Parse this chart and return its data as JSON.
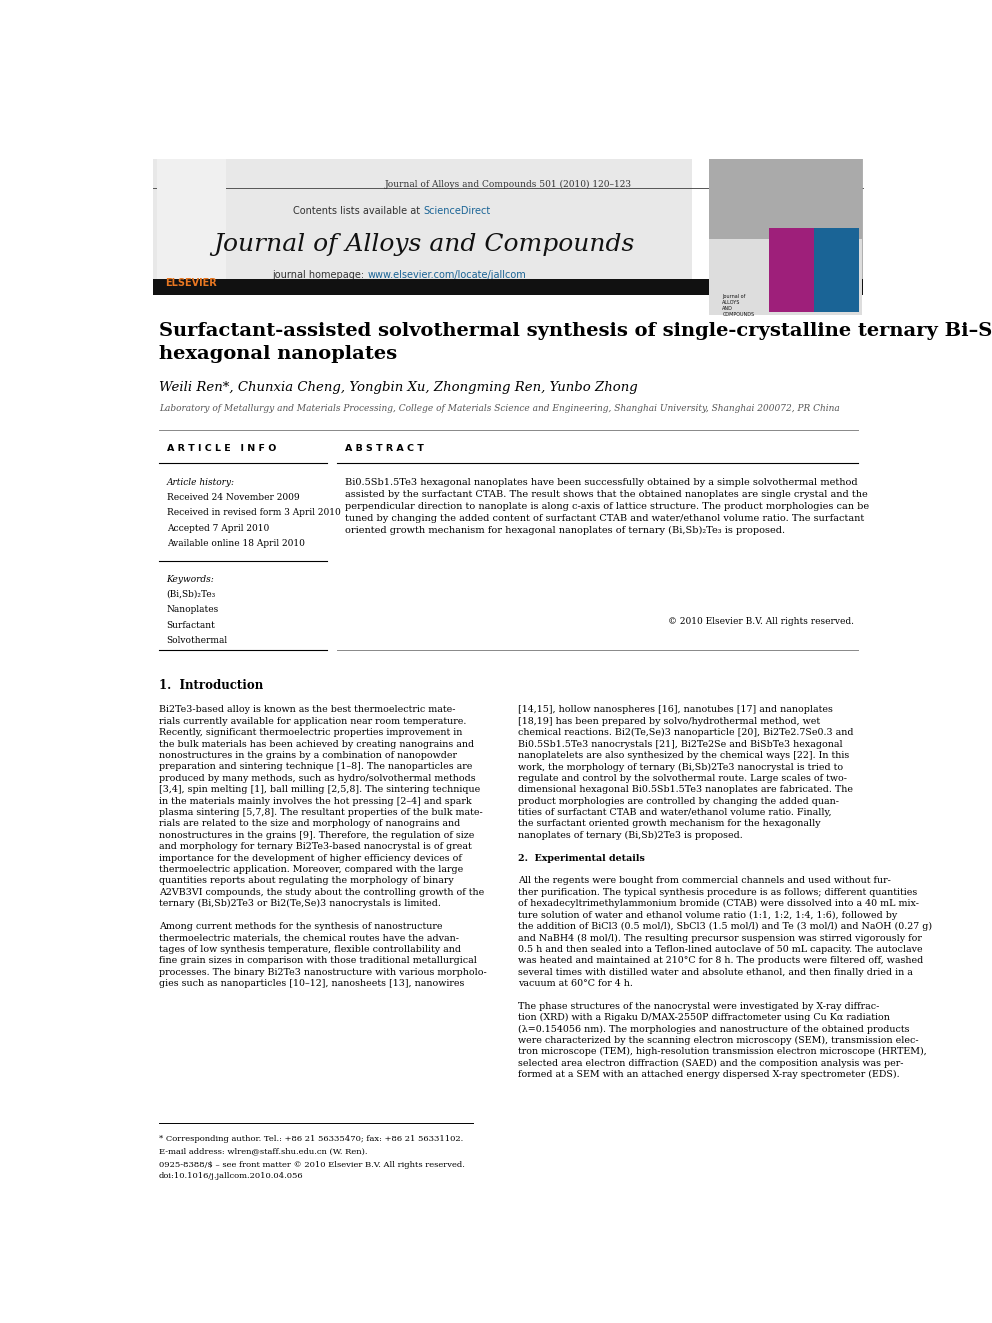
{
  "page_width": 9.92,
  "page_height": 13.23,
  "bg_color": "#ffffff",
  "journal_ref": "Journal of Alloys and Compounds 501 (2010) 120–123",
  "sciencedirect_color": "#1a6496",
  "journal_name": "Journal of Alloys and Compounds",
  "homepage_url_color": "#1a6496",
  "paper_title": "Surfactant-assisted solvothermal synthesis of single-crystalline ternary Bi–Sb–Te\nhexagonal nanoplates",
  "authors": "Weili Ren*, Chunxia Cheng, Yongbin Xu, Zhongming Ren, Yunbo Zhong",
  "affiliation": "Laboratory of Metallurgy and Materials Processing, College of Materials Science and Engineering, Shanghai University, Shanghai 200072, PR China",
  "article_info_header": "A R T I C L E   I N F O",
  "abstract_header": "A B S T R A C T",
  "article_history_label": "Article history:",
  "received": "Received 24 November 2009",
  "revised": "Received in revised form 3 April 2010",
  "accepted": "Accepted 7 April 2010",
  "available": "Available online 18 April 2010",
  "keywords_label": "Keywords:",
  "keywords": [
    "(Bi,Sb)₂Te₃",
    "Nanoplates",
    "Surfactant",
    "Solvothermal"
  ],
  "abstract_text": "Bi0.5Sb1.5Te3 hexagonal nanoplates have been successfully obtained by a simple solvothermal method\nassisted by the surfactant CTAB. The result shows that the obtained nanoplates are single crystal and the\nperpendicular direction to nanoplate is along c-axis of lattice structure. The product morphologies can be\ntuned by changing the added content of surfactant CTAB and water/ethanol volume ratio. The surfactant\noriented growth mechanism for hexagonal nanoplates of ternary (Bi,Sb)₂Te₃ is proposed.",
  "copyright": "© 2010 Elsevier B.V. All rights reserved.",
  "section1_title": "1.  Introduction",
  "intro_col1_lines": [
    "Bi2Te3-based alloy is known as the best thermoelectric mate-",
    "rials currently available for application near room temperature.",
    "Recently, significant thermoelectric properties improvement in",
    "the bulk materials has been achieved by creating nanograins and",
    "nonostructures in the grains by a combination of nanopowder",
    "preparation and sintering technique [1–8]. The nanoparticles are",
    "produced by many methods, such as hydro/solvothermal methods",
    "[3,4], spin melting [1], ball milling [2,5,8]. The sintering technique",
    "in the materials mainly involves the hot pressing [2–4] and spark",
    "plasma sintering [5,7,8]. The resultant properties of the bulk mate-",
    "rials are related to the size and morphology of nanograins and",
    "nonostructures in the grains [9]. Therefore, the regulation of size",
    "and morphology for ternary Bi2Te3-based nanocrystal is of great",
    "importance for the development of higher efficiency devices of",
    "thermoelectric application. Moreover, compared with the large",
    "quantities reports about regulating the morphology of binary",
    "A2VB3VI compounds, the study about the controlling growth of the",
    "ternary (Bi,Sb)2Te3 or Bi2(Te,Se)3 nanocrystals is limited.",
    "",
    "Among current methods for the synthesis of nanostructure",
    "thermoelectric materials, the chemical routes have the advan-",
    "tages of low synthesis temperature, flexible controllability and",
    "fine grain sizes in comparison with those traditional metallurgical",
    "processes. The binary Bi2Te3 nanostructure with various morpholo-",
    "gies such as nanoparticles [10–12], nanosheets [13], nanowires"
  ],
  "intro_col2_lines": [
    "[14,15], hollow nanospheres [16], nanotubes [17] and nanoplates",
    "[18,19] has been prepared by solvo/hydrothermal method, wet",
    "chemical reactions. Bi2(Te,Se)3 nanoparticle [20], Bi2Te2.7Se0.3 and",
    "Bi0.5Sb1.5Te3 nanocrystals [21], Bi2Te2Se and BiSbTe3 hexagonal",
    "nanoplatelets are also synthesized by the chemical ways [22]. In this",
    "work, the morphology of ternary (Bi,Sb)2Te3 nanocrystal is tried to",
    "regulate and control by the solvothermal route. Large scales of two-",
    "dimensional hexagonal Bi0.5Sb1.5Te3 nanoplates are fabricated. The",
    "product morphologies are controlled by changing the added quan-",
    "tities of surfactant CTAB and water/ethanol volume ratio. Finally,",
    "the surfactant oriented growth mechanism for the hexagonally",
    "nanoplates of ternary (Bi,Sb)2Te3 is proposed.",
    "",
    "2.  Experimental details",
    "",
    "All the regents were bought from commercial channels and used without fur-",
    "ther purification. The typical synthesis procedure is as follows; different quantities",
    "of hexadecyltrimethylammonium bromide (CTAB) were dissolved into a 40 mL mix-",
    "ture solution of water and ethanol volume ratio (1:1, 1:2, 1:4, 1:6), followed by",
    "the addition of BiCl3 (0.5 mol/l), SbCl3 (1.5 mol/l) and Te (3 mol/l) and NaOH (0.27 g)",
    "and NaBH4 (8 mol/l). The resulting precursor suspension was stirred vigorously for",
    "0.5 h and then sealed into a Teflon-lined autoclave of 50 mL capacity. The autoclave",
    "was heated and maintained at 210°C for 8 h. The products were filtered off, washed",
    "several times with distilled water and absolute ethanol, and then finally dried in a",
    "vacuum at 60°C for 4 h.",
    "",
    "The phase structures of the nanocrystal were investigated by X-ray diffrac-",
    "tion (XRD) with a Rigaku D/MAX-2550P diffractometer using Cu Kα radiation",
    "(λ=0.154056 nm). The morphologies and nanostructure of the obtained products",
    "were characterized by the scanning electron microscopy (SEM), transmission elec-",
    "tron microscope (TEM), high-resolution transmission electron microscope (HRTEM),",
    "selected area electron diffraction (SAED) and the composition analysis was per-",
    "formed at a SEM with an attached energy dispersed X-ray spectrometer (EDS)."
  ],
  "footer_note": "* Corresponding author. Tel.: +86 21 56335470; fax: +86 21 56331102.",
  "footer_email": "E-mail address: wlren@staff.shu.edu.cn (W. Ren).",
  "footer_issn": "0925-8388/$ – see front matter © 2010 Elsevier B.V. All rights reserved.",
  "footer_doi": "doi:10.1016/j.jallcom.2010.04.056",
  "elsevier_orange": "#e87722",
  "link_blue": "#1a6496",
  "header_gray": "#e8e8e8"
}
